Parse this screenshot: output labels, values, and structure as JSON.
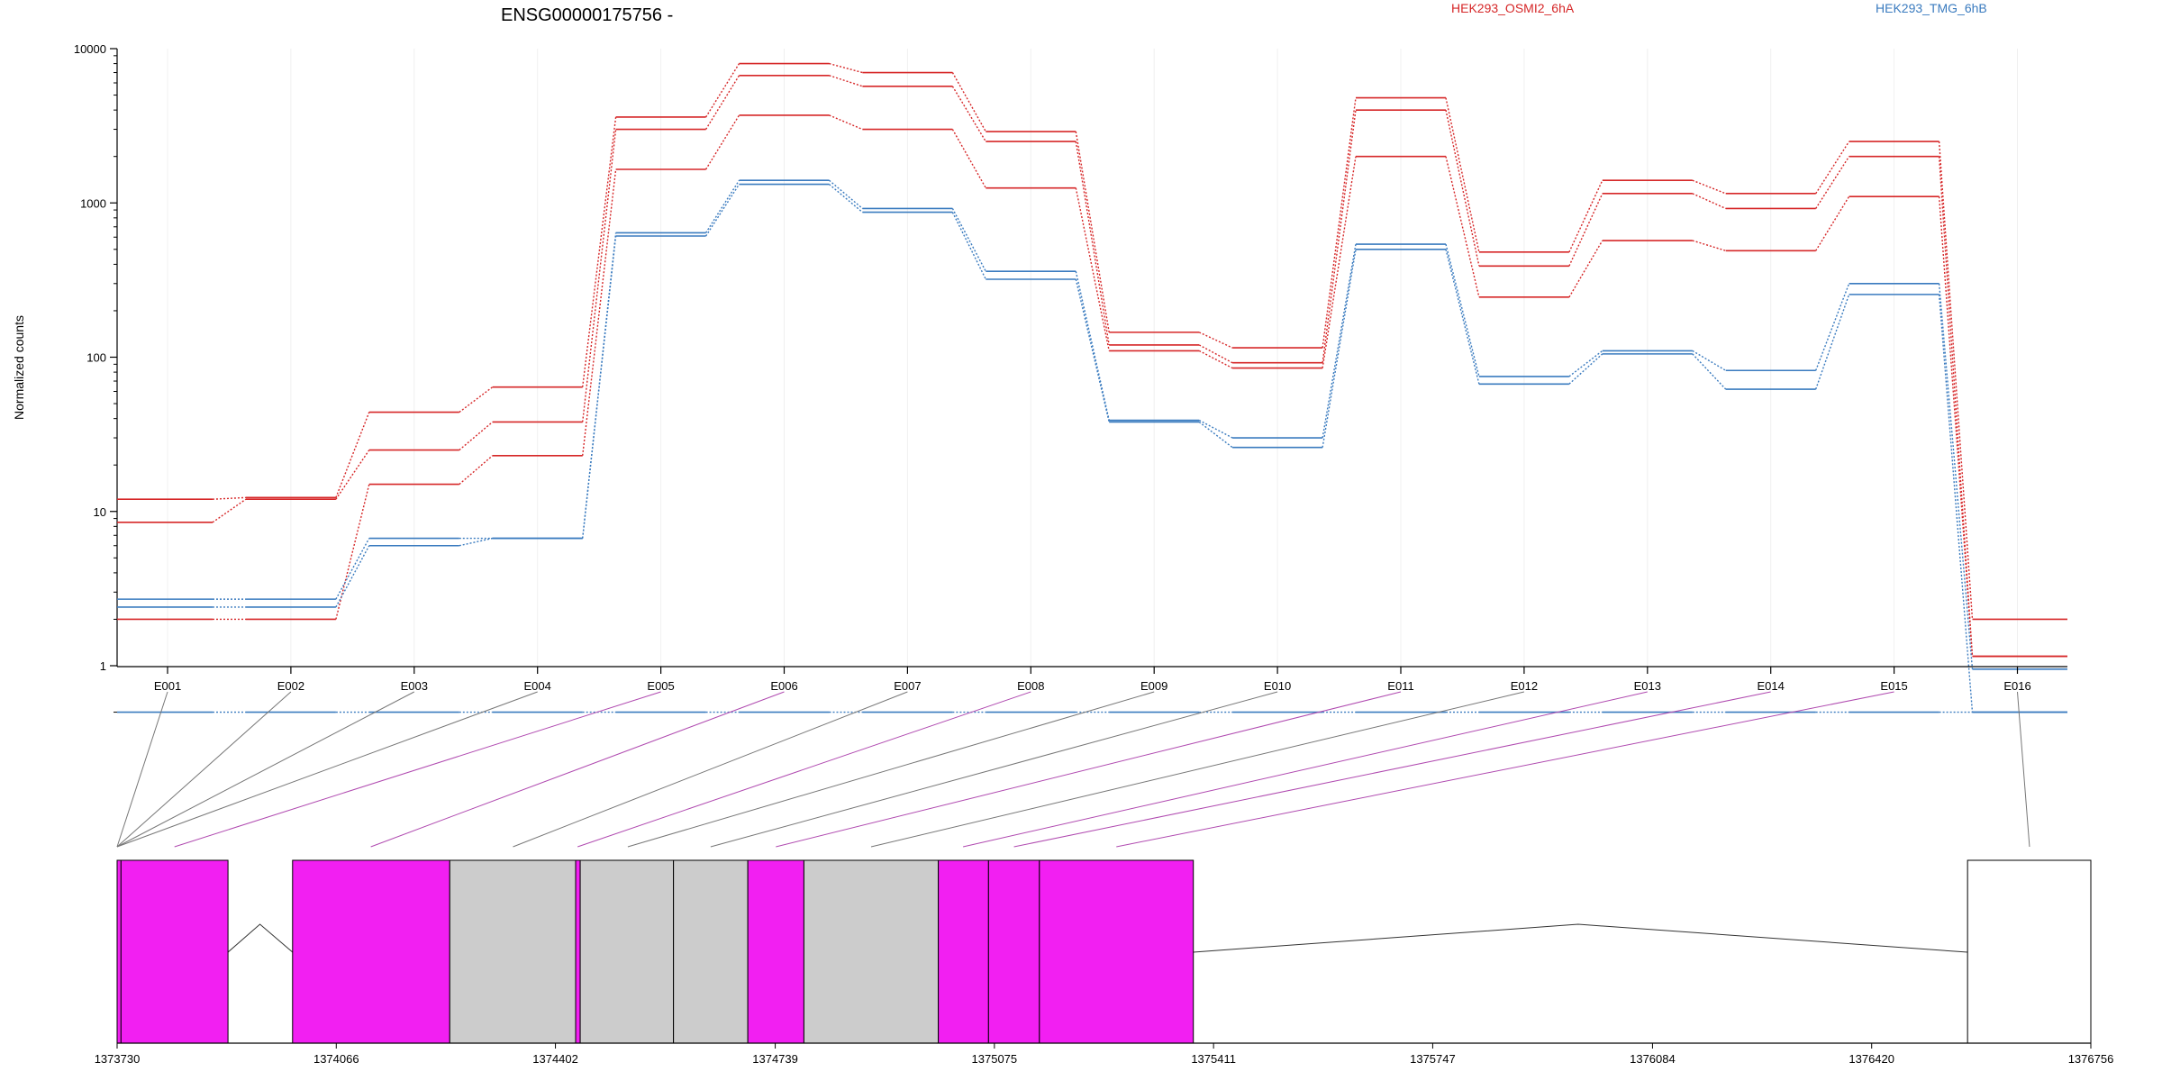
{
  "chart_data": {
    "type": "line",
    "title": "ENSG00000175756 -",
    "ylabel": "Normalized counts",
    "yscale": "log",
    "yticks": [
      {
        "label": "1",
        "value": 1
      },
      {
        "label": "10",
        "value": 10
      },
      {
        "label": "100",
        "value": 100
      },
      {
        "label": "1000",
        "value": 1000
      },
      {
        "label": "10000",
        "value": 10000
      }
    ],
    "ylim": [
      0.5,
      10000
    ],
    "grid": "vertical",
    "categories": [
      "E001",
      "E002",
      "E003",
      "E004",
      "E005",
      "E006",
      "E007",
      "E008",
      "E009",
      "E010",
      "E011",
      "E012",
      "E013",
      "E014",
      "E015",
      "E016"
    ],
    "legend": [
      {
        "name": "HEK293_OSMI2_6hA",
        "color": "#d62728",
        "position": "top-center"
      },
      {
        "name": "HEK293_TMG_6hB",
        "color": "#3a7bbf",
        "position": "top-right"
      }
    ],
    "series": [
      {
        "group": "HEK293_OSMI2_6hA",
        "color": "#d62728",
        "values": [
          12,
          12.3,
          44,
          64,
          3600,
          8000,
          7000,
          2900,
          145,
          115,
          4800,
          480,
          1400,
          1150,
          2500,
          2.0
        ]
      },
      {
        "group": "HEK293_OSMI2_6hA",
        "color": "#d62728",
        "values": [
          8.5,
          12,
          25,
          38,
          3000,
          6700,
          5700,
          2500,
          120,
          92,
          4000,
          390,
          1150,
          920,
          2000,
          1.15
        ]
      },
      {
        "group": "HEK293_OSMI2_6hA",
        "color": "#d62728",
        "values": [
          2.0,
          2.0,
          15,
          23,
          1650,
          3700,
          3000,
          1250,
          110,
          85,
          2000,
          245,
          570,
          490,
          1100,
          1.15
        ]
      },
      {
        "group": "HEK293_TMG_6hB",
        "color": "#3a7bbf",
        "values": [
          2.7,
          2.7,
          6.7,
          6.7,
          640,
          1400,
          920,
          360,
          39,
          30,
          540,
          75,
          110,
          82,
          300,
          0.95
        ]
      },
      {
        "group": "HEK293_TMG_6hB",
        "color": "#3a7bbf",
        "values": [
          2.4,
          2.4,
          6.0,
          6.7,
          610,
          1320,
          870,
          320,
          38,
          26,
          500,
          67,
          105,
          62,
          255,
          0.5
        ]
      },
      {
        "group": "HEK293_TMG_6hB",
        "color": "#3a7bbf",
        "values": [
          0.5,
          0.5,
          0.5,
          0.5,
          0.5,
          0.5,
          0.5,
          0.5,
          0.5,
          0.5,
          0.5,
          0.5,
          0.5,
          0.5,
          0.5,
          0.5
        ]
      }
    ],
    "gene_model": {
      "coordinate_ticks": [
        "1373730",
        "1374066",
        "1374402",
        "1374739",
        "1375075",
        "1375411",
        "1375747",
        "1376084",
        "1376420",
        "1376756"
      ],
      "coordinate_tick_values": [
        1373730,
        1374066,
        1374402,
        1374739,
        1375075,
        1375411,
        1375747,
        1376084,
        1376420,
        1376756
      ],
      "range": [
        1373730,
        1376756
      ],
      "exons": [
        {
          "id": "E001",
          "start": 1373730,
          "end": 1373736,
          "color": "#f21ff2"
        },
        {
          "id": "E002",
          "start": 1373736,
          "end": 1373900,
          "color": "#f21ff2"
        },
        {
          "id": "E003",
          "start": 1373999,
          "end": 1374240,
          "color": "#f21ff2"
        },
        {
          "id": "E004",
          "start": 1374240,
          "end": 1374433,
          "color": "#cccccc"
        },
        {
          "id": "E005",
          "start": 1374433,
          "end": 1374440,
          "color": "#f21ff2"
        },
        {
          "id": "E006",
          "start": 1374440,
          "end": 1374583,
          "color": "#cccccc"
        },
        {
          "id": "E007",
          "start": 1374583,
          "end": 1374697,
          "color": "#cccccc"
        },
        {
          "id": "E008",
          "start": 1374697,
          "end": 1374783,
          "color": "#f21ff2"
        },
        {
          "id": "E009",
          "start": 1374783,
          "end": 1374989,
          "color": "#cccccc"
        },
        {
          "id": "E010",
          "start": 1374989,
          "end": 1375066,
          "color": "#f21ff2"
        },
        {
          "id": "E011",
          "start": 1375066,
          "end": 1375144,
          "color": "#f21ff2"
        },
        {
          "id": "E012",
          "start": 1375144,
          "end": 1375380,
          "color": "#f21ff2"
        },
        {
          "id": "E016",
          "start": 1376567,
          "end": 1376756,
          "color": "#ffffff"
        }
      ],
      "introns": [
        {
          "from": 1373900,
          "to": 1373999,
          "peak": 1373949
        },
        {
          "from": 1375380,
          "to": 1376567,
          "peak": 1375970
        }
      ],
      "connectors": [
        {
          "exon": "E001",
          "to": 1373730,
          "color": "#777777"
        },
        {
          "exon": "E002",
          "to": 1373730,
          "color": "#777777"
        },
        {
          "exon": "E003",
          "to": 1373730,
          "color": "#777777"
        },
        {
          "exon": "E004",
          "to": 1373730,
          "color": "#777777"
        },
        {
          "exon": "E005",
          "to": 1373818,
          "color": "#b04ab0"
        },
        {
          "exon": "E006",
          "to": 1374119,
          "color": "#b04ab0"
        },
        {
          "exon": "E007",
          "to": 1374337,
          "color": "#777777"
        },
        {
          "exon": "E008",
          "to": 1374436,
          "color": "#b04ab0"
        },
        {
          "exon": "E009",
          "to": 1374513,
          "color": "#777777"
        },
        {
          "exon": "E010",
          "to": 1374640,
          "color": "#777777"
        },
        {
          "exon": "E011",
          "to": 1374740,
          "color": "#b04ab0"
        },
        {
          "exon": "E012",
          "to": 1374886,
          "color": "#777777"
        },
        {
          "exon": "E013",
          "to": 1375027,
          "color": "#b04ab0"
        },
        {
          "exon": "E014",
          "to": 1375105,
          "color": "#b04ab0"
        },
        {
          "exon": "E015",
          "to": 1375262,
          "color": "#b04ab0"
        },
        {
          "exon": "E016",
          "to": 1376662,
          "color": "#777777"
        }
      ]
    }
  }
}
